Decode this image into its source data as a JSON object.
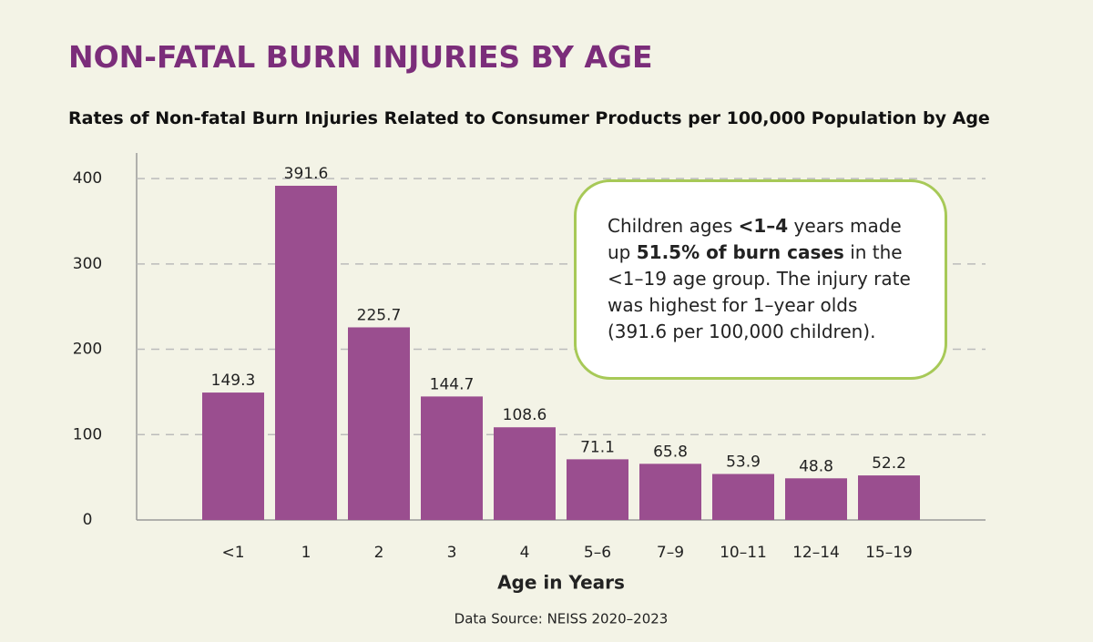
{
  "chart_data": {
    "type": "bar",
    "title": "NON-FATAL BURN INJURIES BY AGE",
    "subtitle": "Rates of Non-fatal Burn Injuries Related to Consumer Products per 100,000 Population by Age",
    "x_label": "Age in Years",
    "source": "Data Source: NEISS 2020–2023",
    "categories": [
      "<1",
      "1",
      "2",
      "3",
      "4",
      "5–6",
      "7–9",
      "10–11",
      "12–14",
      "15–19"
    ],
    "values": [
      149.3,
      391.6,
      225.7,
      144.7,
      108.6,
      71.1,
      65.8,
      53.9,
      48.8,
      52.2
    ],
    "color": "#9a4e8f",
    "ylim": [
      0,
      430
    ],
    "yticks": [
      0,
      100,
      200,
      300,
      400
    ],
    "grid": true,
    "annotation": [
      "Children ages ",
      "<1–4",
      " years made up ",
      "51.5% of burn cases",
      " in the <1–19 age group. The injury rate was highest for 1–year olds (391.6 per 100,000 children)."
    ]
  }
}
